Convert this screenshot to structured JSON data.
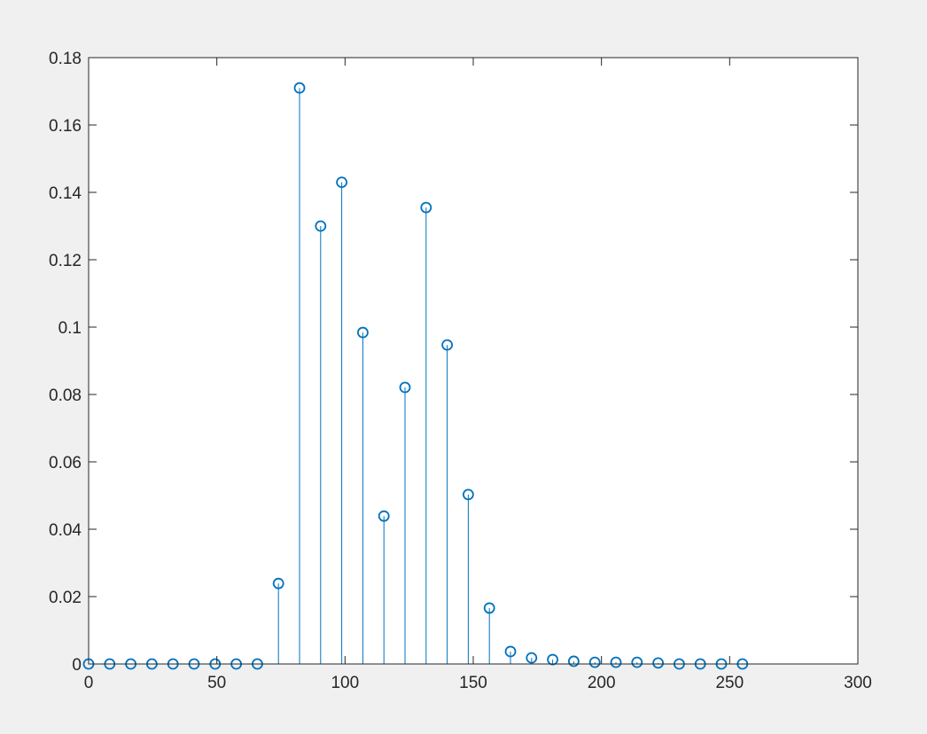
{
  "chart_data": {
    "type": "stem",
    "title": "",
    "xlabel": "",
    "ylabel": "",
    "xlim": [
      0,
      300
    ],
    "ylim": [
      0,
      0.18
    ],
    "grid": false,
    "x_ticks": [
      "0",
      "50",
      "100",
      "150",
      "200",
      "250",
      "300"
    ],
    "y_ticks": [
      "0",
      "0.02",
      "0.04",
      "0.06",
      "0.08",
      "0.1",
      "0.12",
      "0.14",
      "0.16",
      "0.18"
    ],
    "series": [
      {
        "color": "#0072bd",
        "marker": "circle",
        "x": [
          0,
          8.23,
          16.45,
          24.68,
          32.9,
          41.13,
          49.35,
          57.58,
          65.81,
          74.03,
          82.26,
          90.48,
          98.71,
          106.94,
          115.16,
          123.39,
          131.61,
          139.84,
          148.06,
          156.29,
          164.52,
          172.74,
          180.97,
          189.19,
          197.42,
          205.65,
          213.87,
          222.1,
          230.32,
          238.55,
          246.77,
          255
        ],
        "y": [
          0,
          0,
          0,
          0,
          0,
          0,
          0,
          0,
          0,
          0.0239,
          0.171,
          0.13,
          0.143,
          0.0984,
          0.0439,
          0.0821,
          0.1355,
          0.0947,
          0.0503,
          0.0166,
          0.0037,
          0.0018,
          0.0013,
          0.0008,
          0.0005,
          0.0005,
          0.0005,
          0.0003,
          0,
          0,
          0,
          0
        ]
      }
    ]
  },
  "colors": {
    "figure_background": "#f0f0f0",
    "axes_background": "#ffffff",
    "axis": "#262626"
  }
}
